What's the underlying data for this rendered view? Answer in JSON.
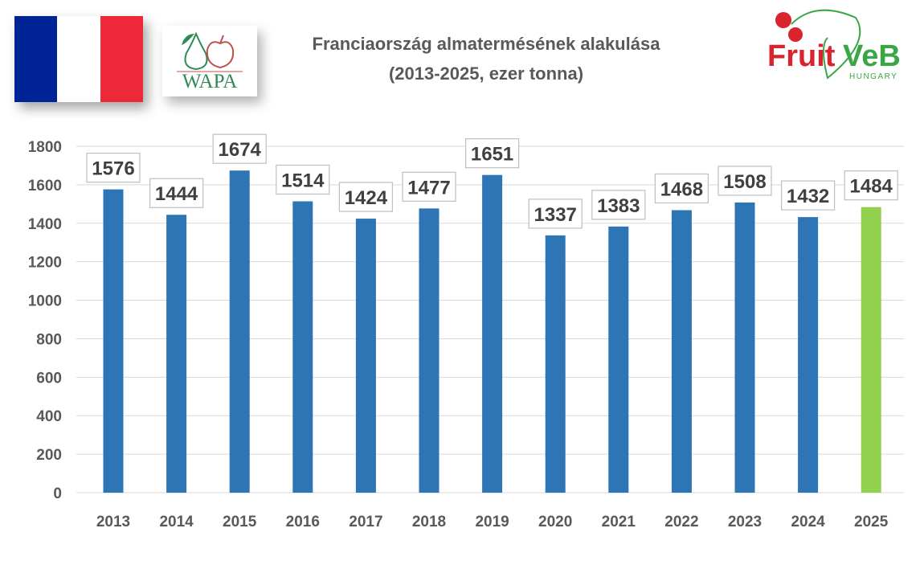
{
  "header": {
    "title_line1": "Franciaország almatermésének alakulása",
    "title_line2": "(2013-2025, ezer tonna)",
    "logos": {
      "wapa": "WAPA",
      "fruitveb": "FruitVeB",
      "fruitveb_sub": "HUNGARY"
    },
    "flag_colors": [
      "#002395",
      "#ffffff",
      "#ed2939"
    ]
  },
  "chart_data": {
    "type": "bar",
    "title": "Franciaország almatermésének alakulása (2013-2025, ezer tonna)",
    "categories": [
      "2013",
      "2014",
      "2015",
      "2016",
      "2017",
      "2018",
      "2019",
      "2020",
      "2021",
      "2022",
      "2023",
      "2024",
      "2025"
    ],
    "values": [
      1576,
      1444,
      1674,
      1514,
      1424,
      1477,
      1651,
      1337,
      1383,
      1468,
      1508,
      1432,
      1484
    ],
    "ylim": [
      0,
      1800
    ],
    "yticks": [
      0,
      200,
      400,
      600,
      800,
      1000,
      1200,
      1400,
      1600,
      1800
    ],
    "grid": true,
    "bar_color": "#2e75b6",
    "highlight_color": "#92d050",
    "highlight_category": "2025"
  }
}
